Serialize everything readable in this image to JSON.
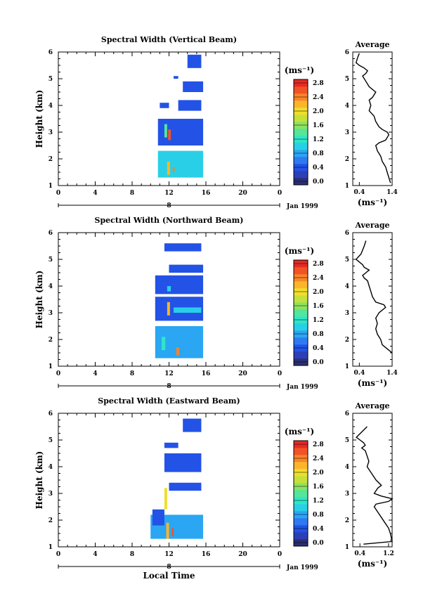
{
  "chart_data": [
    {
      "type": "heatmap",
      "title": "Spectral Width (Vertical Beam)",
      "ylabel": "Height (km)",
      "xlabel": "",
      "xlim": [
        0,
        24
      ],
      "ylim": [
        1,
        6
      ],
      "xticks": [
        "0",
        "4",
        "8",
        "12",
        "16",
        "20",
        "0"
      ],
      "yticks": [
        "1",
        "2",
        "3",
        "4",
        "5",
        "6"
      ],
      "date_day": "8",
      "date_month": "Jan 1999",
      "colorbar": {
        "unit": "(ms⁻¹)",
        "ticks": [
          "0.0",
          "0.4",
          "0.8",
          "1.2",
          "1.6",
          "2.0",
          "2.4",
          "2.8"
        ],
        "range": [
          0,
          3.0
        ]
      },
      "cells": [
        {
          "x0": 10.8,
          "x1": 15.7,
          "y0": 1.3,
          "y1": 2.3,
          "v": 1.0
        },
        {
          "x0": 11.8,
          "x1": 12.1,
          "y0": 1.4,
          "y1": 1.9,
          "v": 2.3
        },
        {
          "x0": 12.4,
          "x1": 12.6,
          "y0": 1.5,
          "y1": 1.7,
          "v": 2.5
        },
        {
          "x0": 10.8,
          "x1": 15.7,
          "y0": 2.5,
          "y1": 3.5,
          "v": 0.5
        },
        {
          "x0": 11.9,
          "x1": 12.2,
          "y0": 2.7,
          "y1": 3.1,
          "v": 2.6
        },
        {
          "x0": 11.5,
          "x1": 11.8,
          "y0": 2.8,
          "y1": 3.3,
          "v": 1.5
        },
        {
          "x0": 13.0,
          "x1": 15.5,
          "y0": 3.8,
          "y1": 4.2,
          "v": 0.4
        },
        {
          "x0": 11.0,
          "x1": 12.0,
          "y0": 3.9,
          "y1": 4.1,
          "v": 0.5
        },
        {
          "x0": 13.5,
          "x1": 15.7,
          "y0": 4.5,
          "y1": 4.9,
          "v": 0.4
        },
        {
          "x0": 14.0,
          "x1": 15.5,
          "y0": 5.4,
          "y1": 5.9,
          "v": 0.5
        },
        {
          "x0": 12.5,
          "x1": 13.0,
          "y0": 5.0,
          "y1": 5.1,
          "v": 0.4
        }
      ],
      "profile": {
        "title": "Average",
        "xlabel": "(ms⁻¹)",
        "xlim": [
          0.2,
          1.4
        ],
        "xticks": [
          "0.4",
          "1.4"
        ],
        "ylim": [
          1,
          6
        ],
        "yticks": [
          "1",
          "2",
          "3",
          "4",
          "5",
          "6"
        ],
        "x": [
          1.35,
          1.3,
          1.25,
          1.2,
          1.1,
          1.05,
          0.95,
          0.9,
          1.0,
          1.2,
          1.3,
          1.25,
          1.1,
          1.0,
          0.95,
          0.9,
          0.85,
          0.7,
          0.75,
          0.7,
          0.8,
          0.9,
          0.7,
          0.6,
          0.55,
          0.5,
          0.6,
          0.65,
          0.55,
          0.4,
          0.3,
          0.35,
          0.4
        ],
        "y": [
          1.1,
          1.3,
          1.5,
          1.7,
          1.9,
          2.1,
          2.3,
          2.5,
          2.6,
          2.7,
          2.9,
          3.0,
          3.1,
          3.2,
          3.3,
          3.4,
          3.6,
          3.8,
          4.0,
          4.2,
          4.3,
          4.5,
          4.7,
          4.9,
          5.0,
          5.1,
          5.2,
          5.3,
          5.4,
          5.5,
          5.6,
          5.8,
          5.95
        ]
      }
    },
    {
      "type": "heatmap",
      "title": "Spectral Width (Northward Beam)",
      "ylabel": "Height (km)",
      "xlabel": "",
      "xlim": [
        0,
        24
      ],
      "ylim": [
        1,
        6
      ],
      "xticks": [
        "0",
        "4",
        "8",
        "12",
        "16",
        "20",
        "0"
      ],
      "yticks": [
        "1",
        "2",
        "3",
        "4",
        "5",
        "6"
      ],
      "date_day": "8",
      "date_month": "Jan 1999",
      "colorbar": {
        "unit": "(ms⁻¹)",
        "ticks": [
          "0.0",
          "0.4",
          "0.8",
          "1.2",
          "1.6",
          "2.0",
          "2.4",
          "2.8"
        ],
        "range": [
          0,
          3.0
        ]
      },
      "cells": [
        {
          "x0": 10.5,
          "x1": 15.7,
          "y0": 1.3,
          "y1": 2.5,
          "v": 0.9
        },
        {
          "x0": 12.8,
          "x1": 13.1,
          "y0": 1.4,
          "y1": 1.7,
          "v": 2.5
        },
        {
          "x0": 11.2,
          "x1": 11.6,
          "y0": 1.6,
          "y1": 2.1,
          "v": 1.4
        },
        {
          "x0": 10.5,
          "x1": 15.7,
          "y0": 2.7,
          "y1": 3.6,
          "v": 0.6
        },
        {
          "x0": 11.8,
          "x1": 12.1,
          "y0": 2.9,
          "y1": 3.4,
          "v": 2.4
        },
        {
          "x0": 12.5,
          "x1": 15.5,
          "y0": 3.0,
          "y1": 3.2,
          "v": 1.2
        },
        {
          "x0": 10.5,
          "x1": 15.7,
          "y0": 3.7,
          "y1": 4.4,
          "v": 0.4
        },
        {
          "x0": 11.8,
          "x1": 12.2,
          "y0": 3.8,
          "y1": 4.0,
          "v": 1.2
        },
        {
          "x0": 12.0,
          "x1": 15.7,
          "y0": 4.5,
          "y1": 4.8,
          "v": 0.4
        },
        {
          "x0": 11.5,
          "x1": 15.5,
          "y0": 5.3,
          "y1": 5.6,
          "v": 0.4
        }
      ],
      "profile": {
        "title": "Average",
        "xlabel": "(ms⁻¹)",
        "xlim": [
          0.2,
          1.4
        ],
        "xticks": [
          "0.4",
          "1.4"
        ],
        "ylim": [
          1,
          6
        ],
        "yticks": [
          "1",
          "2",
          "3",
          "4",
          "5",
          "6"
        ],
        "x": [
          1.4,
          1.3,
          1.2,
          1.1,
          1.05,
          0.95,
          0.9,
          0.95,
          0.9,
          0.95,
          1.0,
          1.1,
          1.2,
          1.15,
          0.9,
          0.8,
          0.75,
          0.7,
          0.65,
          0.55,
          0.5,
          0.6,
          0.7,
          0.55,
          0.5,
          0.4,
          0.3,
          0.45,
          0.55,
          0.6
        ],
        "y": [
          1.5,
          1.6,
          1.7,
          1.8,
          2.0,
          2.2,
          2.4,
          2.6,
          2.8,
          2.9,
          3.0,
          3.1,
          3.2,
          3.3,
          3.4,
          3.6,
          3.8,
          4.0,
          4.2,
          4.3,
          4.4,
          4.5,
          4.6,
          4.7,
          4.8,
          4.9,
          5.0,
          5.2,
          5.5,
          5.7
        ]
      }
    },
    {
      "type": "heatmap",
      "title": "Spectral Width (Eastward Beam)",
      "ylabel": "Height (km)",
      "xlabel": "Local Time",
      "xlim": [
        0,
        24
      ],
      "ylim": [
        1,
        6
      ],
      "xticks": [
        "0",
        "4",
        "8",
        "12",
        "16",
        "20",
        "0"
      ],
      "yticks": [
        "1",
        "2",
        "3",
        "4",
        "5",
        "6"
      ],
      "date_day": "8",
      "date_month": "Jan 1999",
      "colorbar": {
        "unit": "(ms⁻¹)",
        "ticks": [
          "0.0",
          "0.4",
          "0.8",
          "1.2",
          "1.6",
          "2.0",
          "2.4",
          "2.8"
        ],
        "range": [
          0,
          3.0
        ]
      },
      "cells": [
        {
          "x0": 10.0,
          "x1": 15.7,
          "y0": 1.3,
          "y1": 2.2,
          "v": 0.9
        },
        {
          "x0": 11.7,
          "x1": 12.0,
          "y0": 1.3,
          "y1": 1.9,
          "v": 2.2
        },
        {
          "x0": 12.3,
          "x1": 12.5,
          "y0": 1.4,
          "y1": 1.7,
          "v": 2.6
        },
        {
          "x0": 10.2,
          "x1": 11.5,
          "y0": 1.8,
          "y1": 2.4,
          "v": 0.4
        },
        {
          "x0": 11.5,
          "x1": 11.8,
          "y0": 2.4,
          "y1": 3.2,
          "v": 2.1
        },
        {
          "x0": 12.0,
          "x1": 15.5,
          "y0": 3.1,
          "y1": 3.4,
          "v": 0.5
        },
        {
          "x0": 11.5,
          "x1": 15.5,
          "y0": 3.8,
          "y1": 4.5,
          "v": 0.4
        },
        {
          "x0": 11.5,
          "x1": 13.0,
          "y0": 4.7,
          "y1": 4.9,
          "v": 0.4
        },
        {
          "x0": 13.5,
          "x1": 15.5,
          "y0": 5.3,
          "y1": 5.8,
          "v": 0.4
        }
      ],
      "profile": {
        "title": "Average",
        "xlabel": "(ms⁻¹)",
        "xlim": [
          0.2,
          1.3
        ],
        "xticks": [
          "0.4",
          "1.2"
        ],
        "ylim": [
          1,
          6
        ],
        "yticks": [
          "1",
          "2",
          "3",
          "4",
          "5",
          "6"
        ],
        "x": [
          0.5,
          1.3,
          1.25,
          1.2,
          1.1,
          1.0,
          0.9,
          0.8,
          0.85,
          1.2,
          1.3,
          1.0,
          0.8,
          0.9,
          1.0,
          0.85,
          0.7,
          0.6,
          0.65,
          0.6,
          0.55,
          0.45,
          0.55,
          0.5,
          0.4,
          0.3,
          0.45,
          0.6
        ],
        "y": [
          1.1,
          1.2,
          1.5,
          1.7,
          1.9,
          2.1,
          2.3,
          2.5,
          2.6,
          2.7,
          2.8,
          2.9,
          3.0,
          3.2,
          3.3,
          3.5,
          3.8,
          4.0,
          4.2,
          4.4,
          4.6,
          4.7,
          4.8,
          4.9,
          5.0,
          5.1,
          5.3,
          5.5
        ]
      }
    }
  ]
}
